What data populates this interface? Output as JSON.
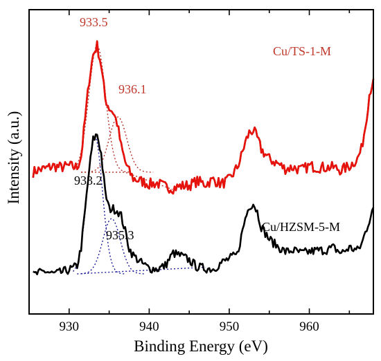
{
  "chart_data": {
    "type": "line",
    "title": "",
    "xlabel": "Binding Energy (eV)",
    "ylabel": "Intensity (a.u.)",
    "xlim": [
      925,
      968
    ],
    "xticks": [
      930,
      940,
      950,
      960
    ],
    "y_ticks_shown": false,
    "grid": false,
    "legend": "none",
    "series": [
      {
        "name": "Cu/TS-1-M",
        "color": "#e8120c",
        "edge_color": "#8a2a12",
        "x": [
          925.5,
          926,
          927,
          928,
          929,
          930,
          930.5,
          931,
          931.5,
          932,
          932.5,
          933,
          933.5,
          934,
          934.5,
          935,
          935.5,
          936,
          936.5,
          937,
          937.5,
          938,
          939,
          940,
          941,
          942,
          943,
          944,
          945,
          946,
          947,
          948,
          949,
          950,
          951,
          951.5,
          952,
          952.5,
          953,
          953.5,
          954,
          955,
          956,
          957,
          958,
          959,
          960,
          961,
          962,
          963,
          964,
          965,
          966,
          966.5,
          967,
          967.5,
          968
        ],
        "y": [
          205,
          208,
          210,
          214,
          212,
          214,
          213,
          212,
          228,
          282,
          338,
          375,
          388,
          360,
          312,
          298,
          292,
          276,
          242,
          220,
          206,
          196,
          192,
          188,
          189,
          184,
          182,
          185,
          186,
          192,
          188,
          194,
          188,
          194,
          212,
          228,
          248,
          262,
          266,
          254,
          238,
          224,
          218,
          210,
          212,
          208,
          214,
          212,
          212,
          212,
          208,
          214,
          224,
          238,
          272,
          318,
          340
        ],
        "peaks": [
          {
            "label": "933.5",
            "x": 933.5
          },
          {
            "label": "936.1",
            "x": 936.1
          }
        ]
      },
      {
        "name": "Cu/HZSM-5-M",
        "color": "#000000",
        "x": [
          925.5,
          926,
          927,
          928,
          929,
          930,
          930.5,
          931,
          931.5,
          932,
          932.5,
          933,
          933.5,
          934,
          934.5,
          935,
          935.5,
          936,
          936.5,
          937,
          937.5,
          938,
          939,
          940,
          941,
          942,
          943,
          944,
          945,
          946,
          947,
          948,
          949,
          950,
          951,
          951.5,
          952,
          952.5,
          953,
          953.5,
          954,
          955,
          956,
          957,
          958,
          959,
          960,
          961,
          962,
          963,
          964,
          965,
          966,
          966.5,
          967,
          967.5,
          968
        ],
        "y": [
          56,
          58,
          62,
          58,
          60,
          64,
          66,
          70,
          96,
          150,
          208,
          252,
          260,
          232,
          176,
          152,
          152,
          150,
          142,
          120,
          95,
          85,
          74,
          66,
          65,
          70,
          88,
          84,
          78,
          68,
          66,
          65,
          74,
          80,
          86,
          112,
          138,
          156,
          160,
          148,
          126,
          108,
          98,
          90,
          92,
          88,
          90,
          92,
          92,
          96,
          88,
          96,
          92,
          100,
          118,
          136,
          154
        ]
      }
    ],
    "components": [
      {
        "label": "Cu/TS-1-M fit components",
        "color": "#b5332a"
      },
      {
        "label": "Cu/HZSM-5-M fit components",
        "color": "#1a1a99"
      }
    ],
    "annotations": [
      {
        "text": "933.5",
        "color": "#c0382b"
      },
      {
        "text": "936.1",
        "color": "#c0382b"
      },
      {
        "text": "Cu/TS-1-M",
        "color": "#c0382b"
      },
      {
        "text": "933.2",
        "color": "#000000"
      },
      {
        "text": "935.3",
        "color": "#000000"
      },
      {
        "text": "Cu/HZSM-5-M",
        "color": "#000000"
      }
    ]
  }
}
